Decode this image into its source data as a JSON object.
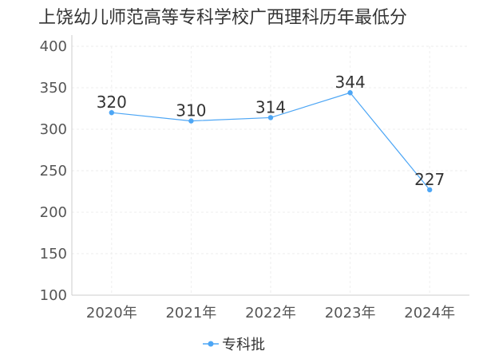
{
  "chart_data": {
    "type": "line",
    "title": "上饶幼儿师范高等专科学校广西理科历年最低分",
    "categories": [
      "2020年",
      "2021年",
      "2022年",
      "2023年",
      "2024年"
    ],
    "series": [
      {
        "name": "专科批",
        "values": [
          320,
          310,
          314,
          344,
          227
        ],
        "color": "#4da6f5"
      }
    ],
    "ylim": [
      100,
      400
    ],
    "yticks": [
      100,
      150,
      200,
      250,
      300,
      350,
      400
    ],
    "grid": true,
    "legend": "bottom-center",
    "xlabel": "",
    "ylabel": ""
  }
}
